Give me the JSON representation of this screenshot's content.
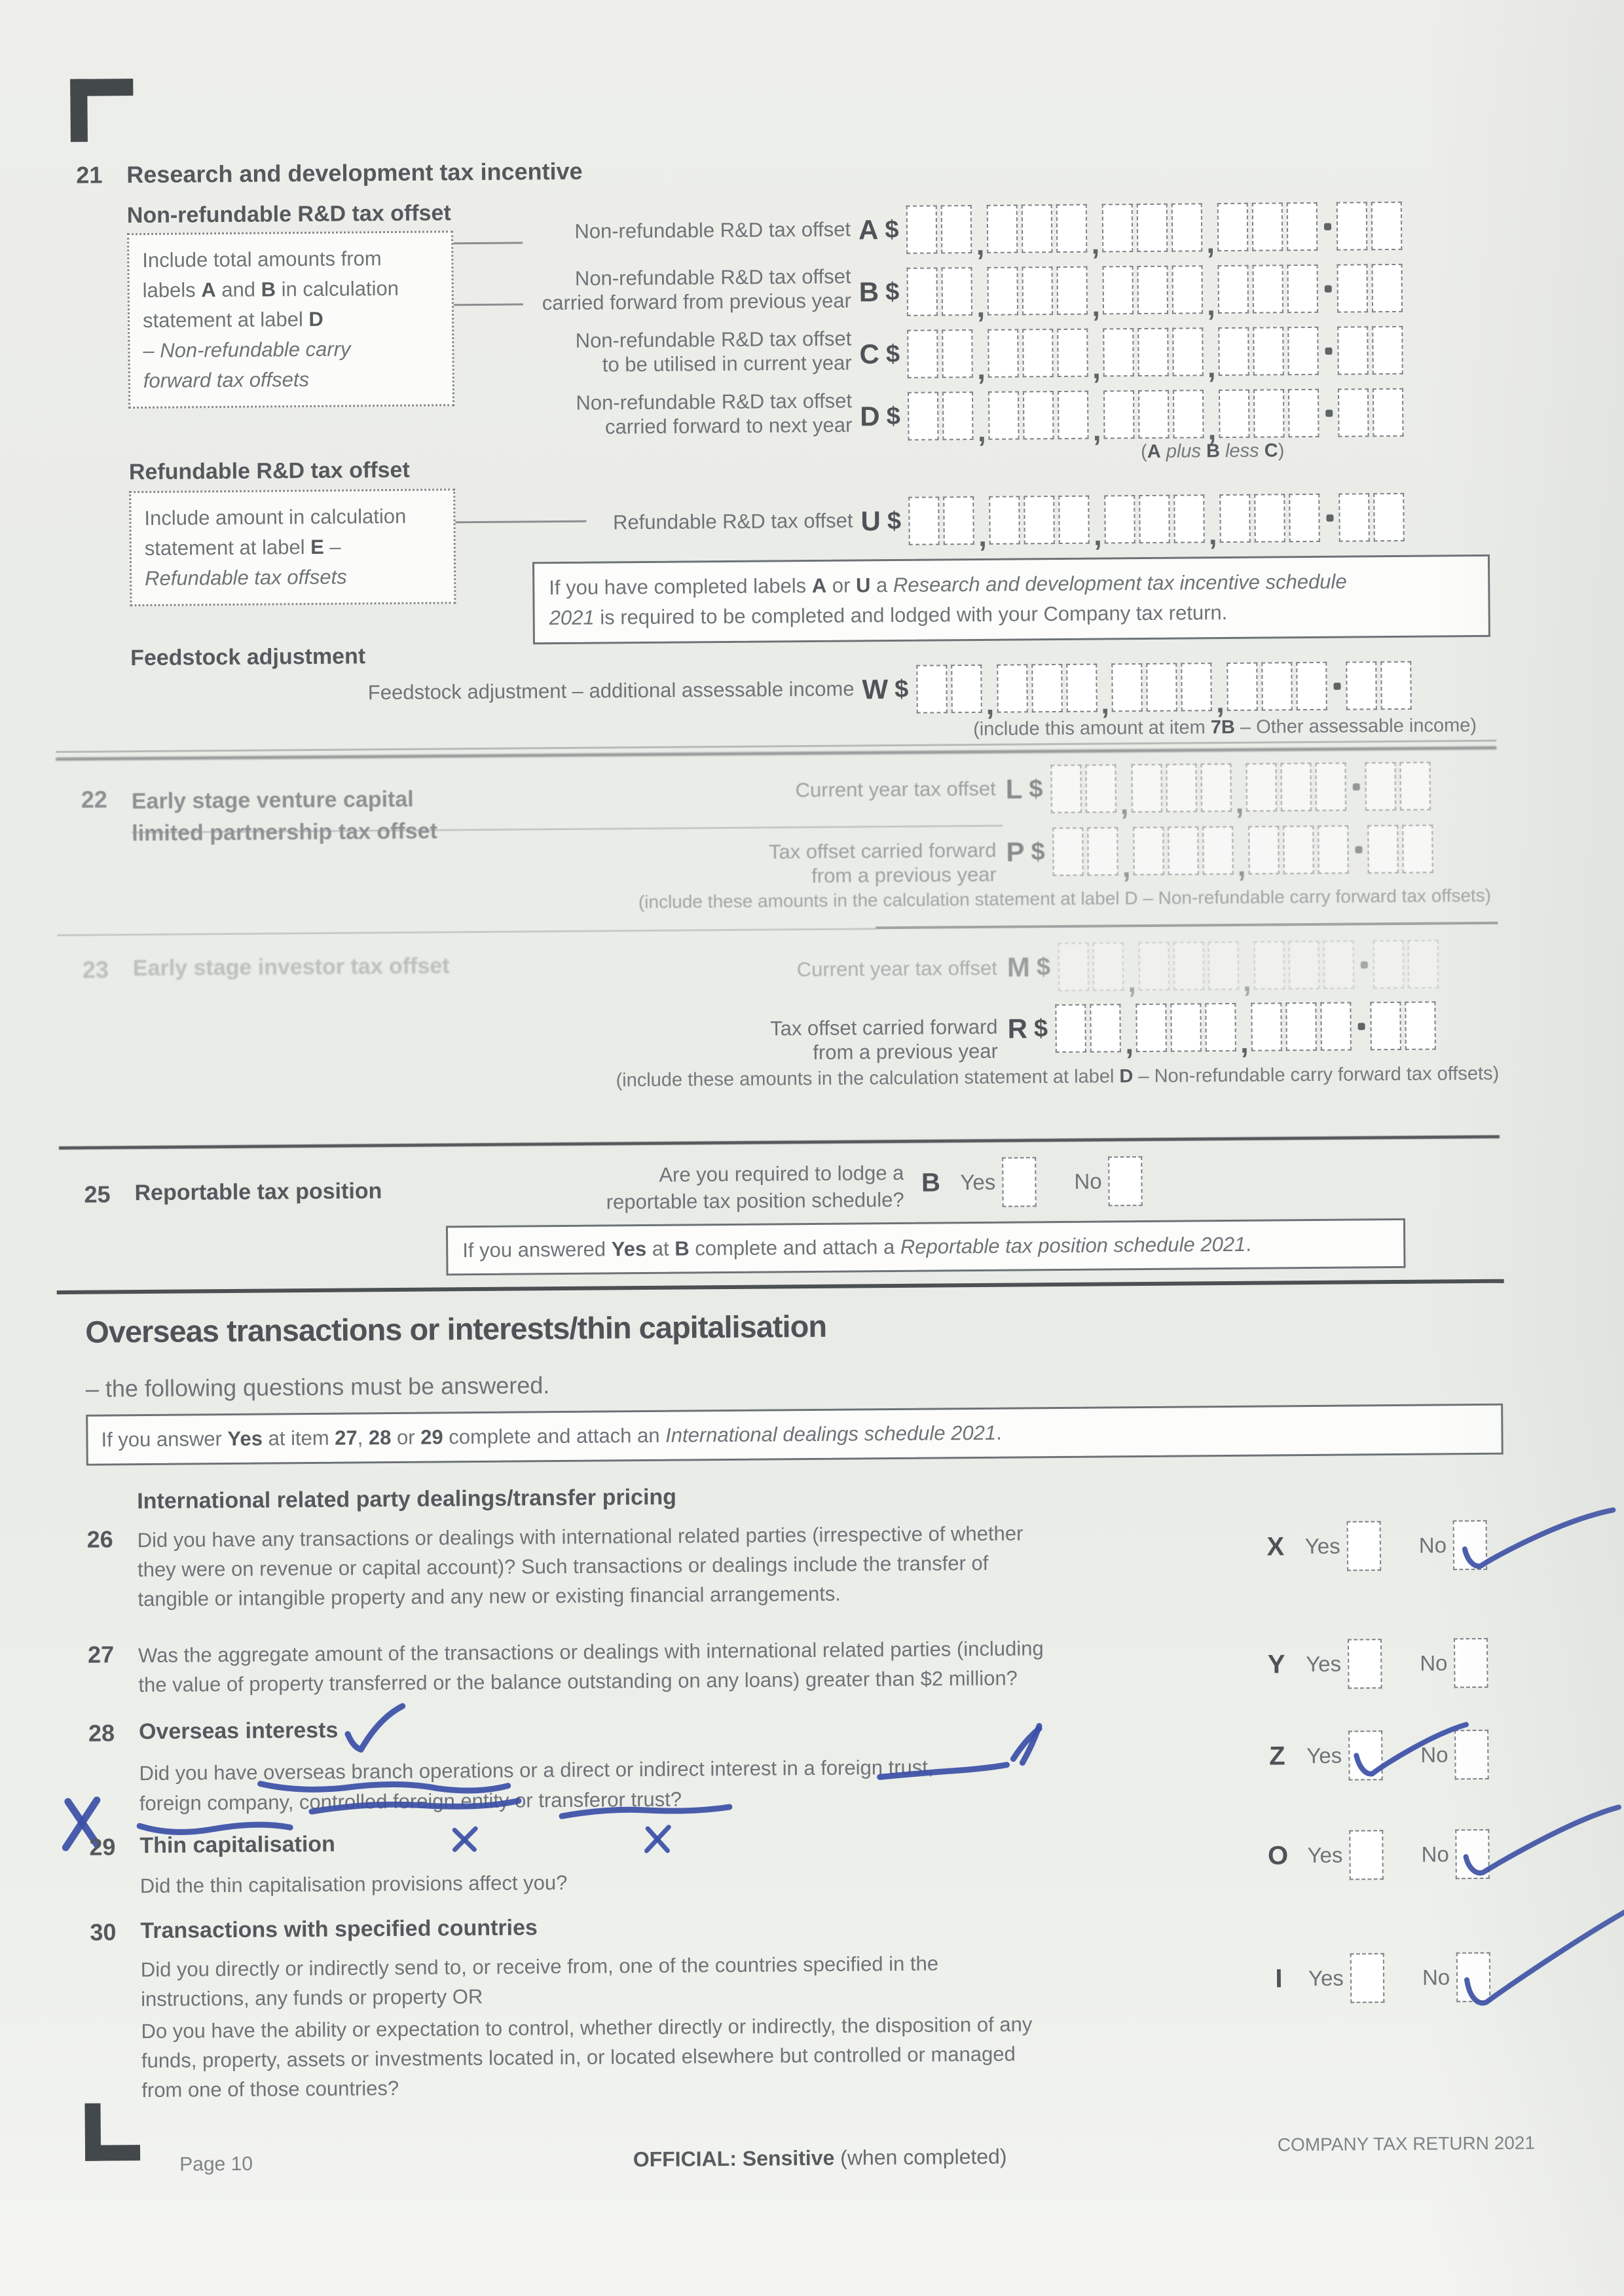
{
  "labels": {
    "yes": "Yes",
    "no": "No",
    "currency": "$"
  },
  "pen_color": "#3b4fa6",
  "box_specs": {
    "wide": {
      "groups": [
        2,
        3,
        3,
        3
      ],
      "dec": 2
    },
    "narrow": {
      "groups": [
        2,
        3,
        3
      ],
      "dec": 2
    }
  },
  "item21": {
    "number": "21",
    "title": "Research and development tax incentive",
    "nonref_heading": "Non-refundable R&D tax offset",
    "hint_nonref_lines": [
      [
        {
          "t": "Include total amounts from"
        }
      ],
      [
        {
          "t": "labels "
        },
        {
          "t": "A",
          "b": true
        },
        {
          "t": " and "
        },
        {
          "t": "B",
          "b": true
        },
        {
          "t": " in calculation"
        }
      ],
      [
        {
          "t": "statement at label "
        },
        {
          "t": "D",
          "b": true
        }
      ],
      [
        {
          "t": "– Non-refundable carry",
          "i": true
        }
      ],
      [
        {
          "t": "forward tax offsets",
          "i": true
        }
      ]
    ],
    "row_a": {
      "letter": "A",
      "label_lines": [
        "Non-refundable R&D tax offset"
      ]
    },
    "row_b": {
      "letter": "B",
      "label_lines": [
        "Non-refundable R&D tax offset",
        "carried forward from previous year"
      ]
    },
    "row_c": {
      "letter": "C",
      "label_lines": [
        "Non-refundable R&D tax offset",
        "to be utilised in current year"
      ]
    },
    "row_d": {
      "letter": "D",
      "label_lines": [
        "Non-refundable R&D tax offset",
        "carried forward to next year"
      ]
    },
    "plus_note": [
      {
        "t": "("
      },
      {
        "t": "A",
        "b": true
      },
      {
        "t": " plus ",
        "i": true
      },
      {
        "t": "B",
        "b": true
      },
      {
        "t": " less ",
        "i": true
      },
      {
        "t": "C",
        "b": true
      },
      {
        "t": ")"
      }
    ],
    "refundable_heading": "Refundable R&D tax offset",
    "hint_ref_lines": [
      [
        {
          "t": "Include amount in calculation"
        }
      ],
      [
        {
          "t": "statement at label "
        },
        {
          "t": "E",
          "b": true
        },
        {
          "t": " –"
        }
      ],
      [
        {
          "t": "Refundable tax offsets",
          "i": true
        }
      ]
    ],
    "row_u": {
      "letter": "U",
      "label_lines": [
        "Refundable R&D tax offset"
      ]
    },
    "schedule_note_lines": [
      [
        {
          "t": "If you have completed labels "
        },
        {
          "t": "A",
          "b": true
        },
        {
          "t": " or "
        },
        {
          "t": "U",
          "b": true
        },
        {
          "t": " a "
        },
        {
          "t": "Research and development tax incentive schedule",
          "i": true
        }
      ],
      [
        {
          "t": "2021",
          "i": true
        },
        {
          "t": " is required to be completed and lodged with your Company tax return."
        }
      ]
    ],
    "feedstock_heading": "Feedstock adjustment",
    "row_w": {
      "letter": "W",
      "label_lines": [
        "Feedstock adjustment – additional assessable income"
      ]
    },
    "feedstock_note": [
      {
        "t": "(include this amount at item "
      },
      {
        "t": "7B",
        "b": true
      },
      {
        "t": " – Other assessable income)"
      }
    ]
  },
  "item22": {
    "number": "22",
    "title_lines": [
      "Early stage venture capital",
      "limited partnership tax offset"
    ],
    "row_l": {
      "letter": "L",
      "label_lines": [
        "Current year tax offset"
      ]
    },
    "row_p": {
      "letter": "P",
      "label_lines": [
        "Tax offset carried forward",
        "from a previous year"
      ]
    },
    "note": [
      {
        "t": "(include these amounts in the calculation statement at label D – Non-refundable carry forward tax offsets)"
      }
    ]
  },
  "item23": {
    "number": "23",
    "title": "Early stage investor tax offset",
    "row_m": {
      "letter": "M",
      "label_lines": [
        "Current year tax offset"
      ]
    },
    "row_r": {
      "letter": "R",
      "label_lines": [
        "Tax offset carried forward",
        "from a previous year"
      ]
    },
    "note": [
      {
        "t": "(include these amounts in the calculation statement at label "
      },
      {
        "t": "D",
        "b": true
      },
      {
        "t": " – Non-refundable carry forward tax offsets)"
      }
    ]
  },
  "item25": {
    "number": "25",
    "title": "Reportable tax position",
    "question_lines": [
      "Are you required to lodge a",
      "reportable tax position schedule?"
    ],
    "letter": "B",
    "checked": {
      "yes": false,
      "no": false
    },
    "note": [
      {
        "t": "If you answered "
      },
      {
        "t": "Yes",
        "b": true
      },
      {
        "t": " at "
      },
      {
        "t": "B",
        "b": true
      },
      {
        "t": " complete and attach a "
      },
      {
        "t": "Reportable tax position schedule 2021",
        "i": true
      },
      {
        "t": "."
      }
    ]
  },
  "overseas_section": {
    "title": "Overseas transactions or interests/thin capitalisation",
    "subtitle": "– the following questions must be answered.",
    "note": [
      {
        "t": "If you answer "
      },
      {
        "t": "Yes",
        "b": true
      },
      {
        "t": " at item "
      },
      {
        "t": "27",
        "b": true
      },
      {
        "t": ", "
      },
      {
        "t": "28",
        "b": true
      },
      {
        "t": " or "
      },
      {
        "t": "29",
        "b": true
      },
      {
        "t": " complete and attach an "
      },
      {
        "t": "International dealings schedule 2021",
        "i": true
      },
      {
        "t": "."
      }
    ],
    "subheading": "International related party dealings/transfer pricing"
  },
  "item26": {
    "number": "26",
    "lines": [
      "Did you have any transactions or dealings with international related parties (irrespective of whether",
      "they were on revenue or capital account)? Such transactions or dealings include the transfer of",
      "tangible or intangible property and any new or existing financial arrangements."
    ],
    "letter": "X",
    "checked": {
      "yes": false,
      "no": true
    }
  },
  "item27": {
    "number": "27",
    "lines": [
      "Was the aggregate amount of the transactions or dealings with international related parties (including",
      "the value of property transferred or the balance outstanding on any loans) greater than $2 million?"
    ],
    "letter": "Y",
    "checked": {
      "yes": false,
      "no": false
    }
  },
  "item28": {
    "number": "28",
    "title": "Overseas interests",
    "lines": [
      "Did you have overseas branch operations or a direct or indirect interest in a foreign trust,",
      "foreign company, controlled foreign entity or transferor trust?"
    ],
    "letter": "Z",
    "checked": {
      "yes": true,
      "no": false
    },
    "pen_annotations": true
  },
  "item29": {
    "number": "29",
    "title": "Thin capitalisation",
    "lines": [
      "Did the thin capitalisation provisions affect you?"
    ],
    "letter": "O",
    "checked": {
      "yes": false,
      "no": true
    }
  },
  "item30": {
    "number": "30",
    "title": "Transactions with specified countries",
    "para1_lines": [
      "Did you directly or indirectly send to, or receive from, one of the countries specified in the",
      "instructions, any funds or property OR"
    ],
    "para2_lines": [
      "Do you have the ability or expectation to control, whether directly or indirectly, the disposition of any",
      "funds, property, assets or investments located in, or located elsewhere but controlled or managed",
      "from one of those countries?"
    ],
    "letter": "I",
    "checked": {
      "yes": false,
      "no": true
    }
  },
  "footer": {
    "page_label": "Page 10",
    "classification": [
      {
        "t": "OFFICIAL: Sensitive",
        "b": true
      },
      {
        "t": " (when completed)"
      }
    ],
    "return_label": "COMPANY TAX RETURN 2021"
  }
}
